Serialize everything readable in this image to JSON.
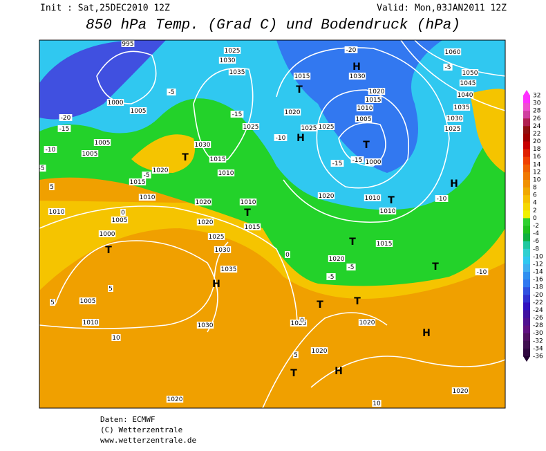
{
  "header": {
    "init": "Init : Sat,25DEC2010 12Z",
    "valid": "Valid: Mon,03JAN2011 12Z",
    "title": "850 hPa Temp. (Grad C) und Bodendruck (hPa)"
  },
  "footer": {
    "source": "Daten: ECMWF",
    "copyright": "(C) Wetterzentrale",
    "url": "www.wetterzentrale.de"
  },
  "color_scale": {
    "labels": [
      32,
      30,
      28,
      26,
      24,
      22,
      20,
      18,
      16,
      14,
      12,
      10,
      8,
      6,
      4,
      2,
      0,
      -2,
      -4,
      -6,
      -8,
      -10,
      -12,
      -14,
      -16,
      -18,
      -20,
      -22,
      -24,
      -26,
      -28,
      -30,
      -32,
      -34,
      -36
    ]
  },
  "map": {
    "labels": [
      "995",
      "1000",
      "1005",
      "1005",
      "1005",
      "1010",
      "1005",
      "1000",
      "T",
      "1005",
      "1010",
      "1020",
      "1015",
      "1010",
      "1020",
      "1020",
      "1025",
      "1030",
      "1035",
      "H",
      "1030",
      "1020",
      "1025",
      "1020",
      "H",
      "T",
      "1020",
      "H",
      "1020",
      "10",
      "10",
      "1010",
      "T",
      "1015",
      "1015",
      "1010",
      "1030",
      "1025",
      "1035",
      "1030",
      "1025",
      "1015",
      "1020",
      "1025",
      "1025",
      "H",
      "1030",
      "H",
      "1020",
      "1015",
      "1010",
      "1005",
      "T",
      "1000",
      "1020",
      "1010",
      "T",
      "1010",
      "H",
      "1060",
      "1050",
      "1045",
      "1040",
      "1035",
      "1030",
      "1025",
      "1015",
      "T",
      "1020",
      "T",
      "T",
      "T",
      "T",
      "T",
      "-20",
      "-15",
      "-10",
      "-5",
      "5",
      "-5",
      "-5",
      "-15",
      "-10",
      "-15",
      "-10",
      "-5",
      "-20",
      "0",
      "0",
      "-5",
      "5",
      "5",
      "0",
      "5",
      "-5",
      "-15",
      "-10"
    ]
  }
}
